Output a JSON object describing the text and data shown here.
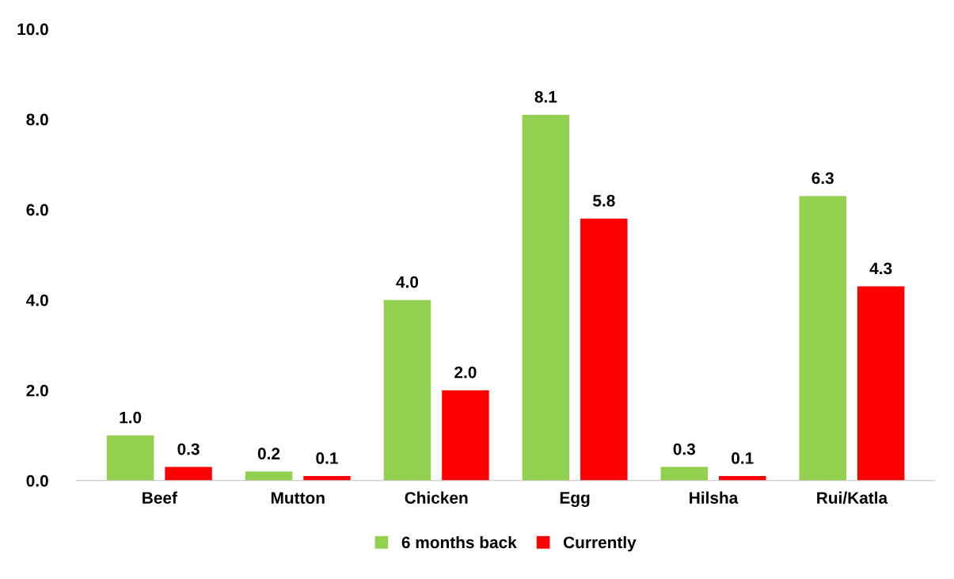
{
  "chart_data": {
    "type": "bar",
    "categories": [
      "Beef",
      "Mutton",
      "Chicken",
      "Egg",
      "Hilsha",
      "Rui/Katla"
    ],
    "series": [
      {
        "name": "6 months back",
        "color": "#92d050",
        "values": [
          1.0,
          0.2,
          4.0,
          8.1,
          0.3,
          6.3
        ],
        "value_labels": [
          "1.0",
          "0.2",
          "4.0",
          "8.1",
          "0.3",
          "6.3"
        ]
      },
      {
        "name": "Currently",
        "color": "#ff0000",
        "values": [
          0.3,
          0.1,
          2.0,
          5.8,
          0.1,
          4.3
        ],
        "value_labels": [
          "0.3",
          "0.1",
          "2.0",
          "5.8",
          "0.1",
          "4.3"
        ]
      }
    ],
    "ylim": [
      0,
      10
    ],
    "yticks": [
      {
        "value": 0,
        "label": "0.0"
      },
      {
        "value": 2,
        "label": "2.0"
      },
      {
        "value": 4,
        "label": "4.0"
      },
      {
        "value": 6,
        "label": "6.0"
      },
      {
        "value": 8,
        "label": "8.0"
      },
      {
        "value": 10,
        "label": "10.0"
      }
    ],
    "grid": false,
    "legend": "bottom"
  }
}
